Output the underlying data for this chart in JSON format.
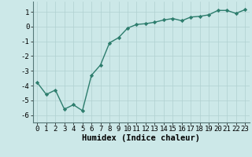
{
  "x": [
    0,
    1,
    2,
    3,
    4,
    5,
    6,
    7,
    8,
    9,
    10,
    11,
    12,
    13,
    14,
    15,
    16,
    17,
    18,
    19,
    20,
    21,
    22,
    23
  ],
  "y": [
    -3.8,
    -4.6,
    -4.3,
    -5.6,
    -5.3,
    -5.7,
    -3.3,
    -2.6,
    -1.1,
    -0.75,
    -0.1,
    0.15,
    0.2,
    0.3,
    0.45,
    0.55,
    0.4,
    0.65,
    0.7,
    0.8,
    1.1,
    1.1,
    0.9,
    1.15
  ],
  "line_color": "#2d7d6d",
  "marker": "D",
  "marker_size": 2.2,
  "bg_color": "#cce8e8",
  "grid_color": "#b0d0d0",
  "xlabel": "Humidex (Indice chaleur)",
  "ylim": [
    -6.5,
    1.7
  ],
  "xlim": [
    -0.5,
    23.5
  ],
  "yticks": [
    -6,
    -5,
    -4,
    -3,
    -2,
    -1,
    0,
    1
  ],
  "xticks": [
    0,
    1,
    2,
    3,
    4,
    5,
    6,
    7,
    8,
    9,
    10,
    11,
    12,
    13,
    14,
    15,
    16,
    17,
    18,
    19,
    20,
    21,
    22,
    23
  ],
  "xlabel_fontsize": 7.5,
  "tick_fontsize": 6.5,
  "line_width": 1.0
}
